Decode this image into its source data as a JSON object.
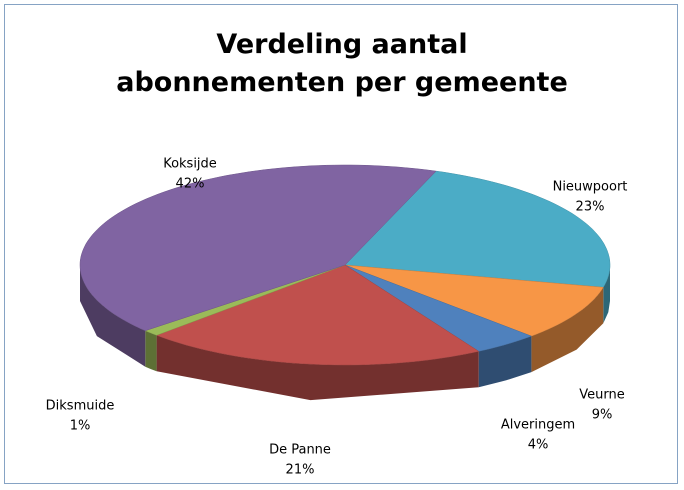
{
  "chart_data": {
    "type": "pie",
    "title": "Verdeling aantal abonnementen per gemeente",
    "categories": [
      "Nieuwpoort",
      "Veurne",
      "Alveringem",
      "De Panne",
      "Diksmuide",
      "Koksijde"
    ],
    "values": [
      23,
      9,
      4,
      21,
      1,
      42
    ],
    "value_labels": [
      "23%",
      "9%",
      "4%",
      "21%",
      "1%",
      "42%"
    ],
    "colors": [
      "#4bacc6",
      "#f79646",
      "#4f81bd",
      "#c0504d",
      "#9bbb59",
      "#8064a2"
    ]
  }
}
